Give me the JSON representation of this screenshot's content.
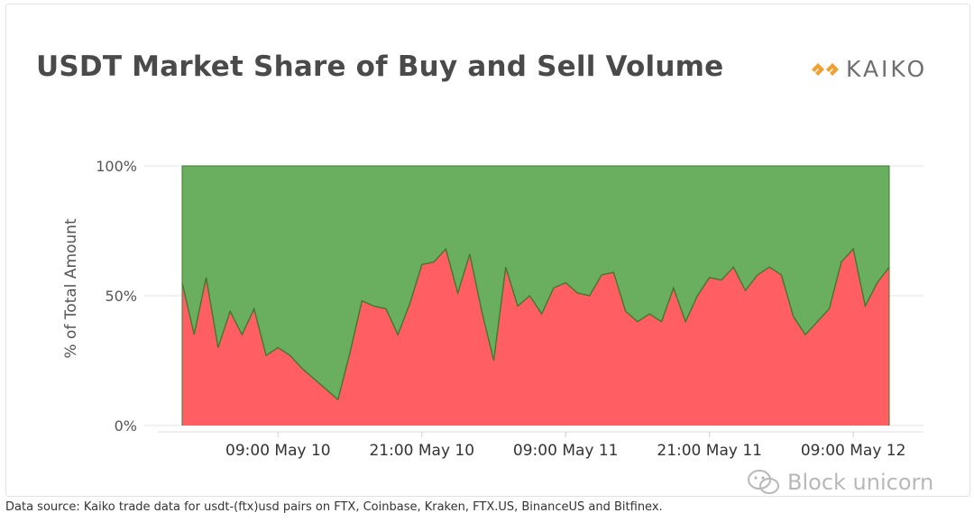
{
  "title": "USDT Market Share of Buy and Sell Volume",
  "logo": {
    "text": "KAIKO",
    "icon": "kaiko-logo-icon",
    "color": "#f0a030"
  },
  "source": "Data source: Kaiko trade data for usdt-(ftx)usd pairs on FTX, Coinbase, Kraken, FTX.US, BinanceUS and Bitfinex.",
  "watermark": {
    "text": "Block unicorn",
    "icon": "wechat-icon"
  },
  "colors": {
    "sell": "#ff5e62",
    "buy": "#6aae5f",
    "line": "#3f7a2e"
  },
  "chart_data": {
    "type": "area",
    "stacked": true,
    "percent": true,
    "ylabel": "% of Total Amount",
    "ylim": [
      0,
      100
    ],
    "yticks": [
      "0%",
      "50%",
      "100%"
    ],
    "ytick_values": [
      0,
      50,
      100
    ],
    "xticks": [
      "09:00 May 10",
      "21:00 May 10",
      "09:00 May 11",
      "21:00 May 11",
      "09:00 May 12"
    ],
    "xtick_hours": [
      9,
      21,
      33,
      45,
      57
    ],
    "xlabel": "",
    "grid": true,
    "legend": "none",
    "x_hours": [
      1,
      2,
      3,
      4,
      5,
      6,
      7,
      8,
      9,
      10,
      11,
      12,
      13,
      14,
      15,
      16,
      17,
      18,
      19,
      20,
      21,
      22,
      23,
      24,
      25,
      26,
      27,
      28,
      29,
      30,
      31,
      32,
      33,
      34,
      35,
      36,
      37,
      38,
      39,
      40,
      41,
      42,
      43,
      44,
      45,
      46,
      47,
      48,
      49,
      50,
      51,
      52,
      53,
      54,
      55,
      56,
      57,
      58,
      59,
      60
    ],
    "series": [
      {
        "values": [
          55,
          35,
          57,
          30,
          44,
          35,
          45,
          27,
          30,
          27,
          22,
          18,
          14,
          10,
          28,
          48,
          46,
          45,
          35,
          47,
          62,
          63,
          68,
          51,
          66,
          44,
          25,
          61,
          46,
          50,
          43,
          53,
          55,
          51,
          50,
          58,
          59,
          44,
          40,
          43,
          40,
          53,
          40,
          50,
          57,
          56,
          61,
          52,
          58,
          61,
          58,
          42,
          35,
          40,
          45,
          63,
          68,
          46,
          55,
          61
        ]
      },
      {
        "values": [
          45,
          65,
          43,
          70,
          56,
          65,
          55,
          73,
          70,
          73,
          78,
          82,
          86,
          90,
          72,
          52,
          54,
          55,
          65,
          53,
          38,
          37,
          32,
          49,
          34,
          56,
          75,
          39,
          54,
          50,
          57,
          47,
          45,
          49,
          50,
          42,
          41,
          56,
          60,
          57,
          60,
          47,
          60,
          50,
          43,
          44,
          39,
          48,
          42,
          39,
          42,
          58,
          65,
          60,
          55,
          37,
          32,
          54,
          45,
          39
        ]
      }
    ]
  }
}
